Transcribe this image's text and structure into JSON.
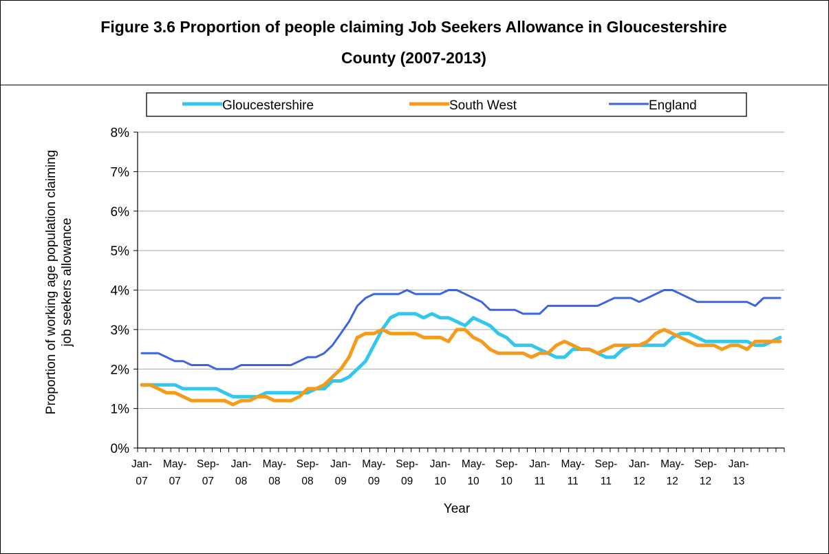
{
  "figure": {
    "title_line1": "Figure 3.6 Proportion of people claiming Job Seekers Allowance in Gloucestershire",
    "title_line2": "County (2007-2013)"
  },
  "chart_data": {
    "type": "line",
    "title": "Figure 3.6 Proportion of people claiming Job Seekers Allowance in Gloucestershire County (2007-2013)",
    "xlabel": "Year",
    "ylabel_line1": "Proportion of working age population claiming",
    "ylabel_line2": "job seekers allowance",
    "ylim": [
      0,
      8
    ],
    "y_ticks": [
      "0%",
      "1%",
      "2%",
      "3%",
      "4%",
      "5%",
      "6%",
      "7%",
      "8%"
    ],
    "x_tick_labels": [
      [
        "Jan-",
        "07"
      ],
      [
        "May-",
        "07"
      ],
      [
        "Sep-",
        "07"
      ],
      [
        "Jan-",
        "08"
      ],
      [
        "May-",
        "08"
      ],
      [
        "Sep-",
        "08"
      ],
      [
        "Jan-",
        "09"
      ],
      [
        "May-",
        "09"
      ],
      [
        "Sep-",
        "09"
      ],
      [
        "Jan-",
        "10"
      ],
      [
        "May-",
        "10"
      ],
      [
        "Sep-",
        "10"
      ],
      [
        "Jan-",
        "11"
      ],
      [
        "May-",
        "11"
      ],
      [
        "Sep-",
        "11"
      ],
      [
        "Jan-",
        "12"
      ],
      [
        "May-",
        "12"
      ],
      [
        "Sep-",
        "12"
      ],
      [
        "Jan-",
        "13"
      ]
    ],
    "x_start": "Jan-07",
    "x_end": "Feb-13",
    "grid": true,
    "legend_position": "top",
    "series": [
      {
        "name": "Gloucestershire",
        "color": "#33c7ee",
        "values": [
          1.6,
          1.6,
          1.6,
          1.6,
          1.6,
          1.5,
          1.5,
          1.5,
          1.5,
          1.5,
          1.4,
          1.3,
          1.3,
          1.3,
          1.3,
          1.4,
          1.4,
          1.4,
          1.4,
          1.4,
          1.4,
          1.5,
          1.5,
          1.7,
          1.7,
          1.8,
          2.0,
          2.2,
          2.6,
          3.0,
          3.3,
          3.4,
          3.4,
          3.4,
          3.3,
          3.4,
          3.3,
          3.3,
          3.2,
          3.1,
          3.3,
          3.2,
          3.1,
          2.9,
          2.8,
          2.6,
          2.6,
          2.6,
          2.5,
          2.4,
          2.3,
          2.3,
          2.5,
          2.5,
          2.5,
          2.4,
          2.3,
          2.3,
          2.5,
          2.6,
          2.6,
          2.6,
          2.6,
          2.6,
          2.8,
          2.9,
          2.9,
          2.8,
          2.7,
          2.7,
          2.7,
          2.7,
          2.7,
          2.7,
          2.6,
          2.6,
          2.7,
          2.8
        ]
      },
      {
        "name": "South West",
        "color": "#f59b1c",
        "values": [
          1.6,
          1.6,
          1.5,
          1.4,
          1.4,
          1.3,
          1.2,
          1.2,
          1.2,
          1.2,
          1.2,
          1.1,
          1.2,
          1.2,
          1.3,
          1.3,
          1.2,
          1.2,
          1.2,
          1.3,
          1.5,
          1.5,
          1.6,
          1.8,
          2.0,
          2.3,
          2.8,
          2.9,
          2.9,
          3.0,
          2.9,
          2.9,
          2.9,
          2.9,
          2.8,
          2.8,
          2.8,
          2.7,
          3.0,
          3.0,
          2.8,
          2.7,
          2.5,
          2.4,
          2.4,
          2.4,
          2.4,
          2.3,
          2.4,
          2.4,
          2.6,
          2.7,
          2.6,
          2.5,
          2.5,
          2.4,
          2.5,
          2.6,
          2.6,
          2.6,
          2.6,
          2.7,
          2.9,
          3.0,
          2.9,
          2.8,
          2.7,
          2.6,
          2.6,
          2.6,
          2.5,
          2.6,
          2.6,
          2.5,
          2.7,
          2.7,
          2.7,
          2.7
        ]
      },
      {
        "name": "England",
        "color": "#3c64e0",
        "values": [
          2.4,
          2.4,
          2.4,
          2.3,
          2.2,
          2.2,
          2.1,
          2.1,
          2.1,
          2.0,
          2.0,
          2.0,
          2.1,
          2.1,
          2.1,
          2.1,
          2.1,
          2.1,
          2.1,
          2.2,
          2.3,
          2.3,
          2.4,
          2.6,
          2.9,
          3.2,
          3.6,
          3.8,
          3.9,
          3.9,
          3.9,
          3.9,
          4.0,
          3.9,
          3.9,
          3.9,
          3.9,
          4.0,
          4.0,
          3.9,
          3.8,
          3.7,
          3.5,
          3.5,
          3.5,
          3.5,
          3.4,
          3.4,
          3.4,
          3.6,
          3.6,
          3.6,
          3.6,
          3.6,
          3.6,
          3.6,
          3.7,
          3.8,
          3.8,
          3.8,
          3.7,
          3.8,
          3.9,
          4.0,
          4.0,
          3.9,
          3.8,
          3.7,
          3.7,
          3.7,
          3.7,
          3.7,
          3.7,
          3.7,
          3.6,
          3.8,
          3.8,
          3.8
        ]
      }
    ]
  }
}
